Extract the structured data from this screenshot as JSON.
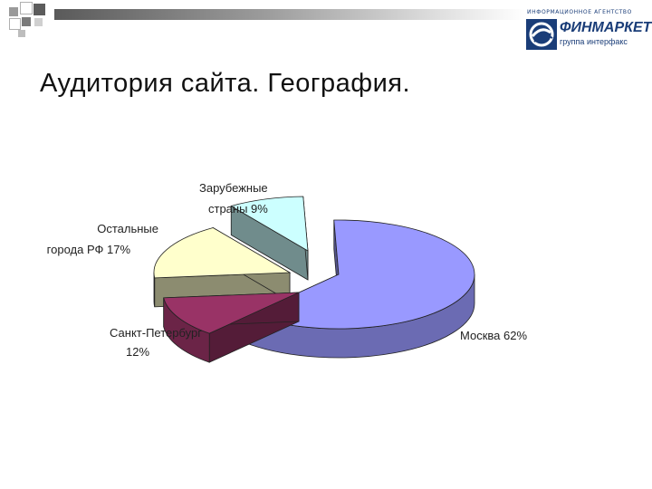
{
  "header": {
    "title": "Аудитория сайта. География."
  },
  "logo": {
    "agency_line": "ИНФОРМАЦИОННОЕ АГЕНТСТВО",
    "name": "ФИНМАРКЕТ",
    "subline": "группа интерфакс"
  },
  "colors": {
    "accent_blue": "#1a3d78",
    "moscow": "#9999ff",
    "spb": "#993366",
    "other_cities": "#ffffcc",
    "foreign": "#ccffff"
  },
  "chart_data": {
    "type": "pie",
    "style": "3d-exploded",
    "slices": [
      {
        "name": "Москва",
        "value": 62,
        "label_lines": [
          "Москва 62%"
        ],
        "color": "#9999ff"
      },
      {
        "name": "Санкт-Петербург",
        "value": 12,
        "label_lines": [
          "Санкт-Петербург",
          "12%"
        ],
        "color": "#993366"
      },
      {
        "name": "Остальные города РФ",
        "value": 17,
        "label_lines": [
          "Остальные",
          "города РФ  17%"
        ],
        "color": "#ffffcc"
      },
      {
        "name": "Зарубежные страны",
        "value": 9,
        "label_lines": [
          "Зарубежные",
          "страны 9%"
        ],
        "color": "#ccffff"
      }
    ]
  }
}
